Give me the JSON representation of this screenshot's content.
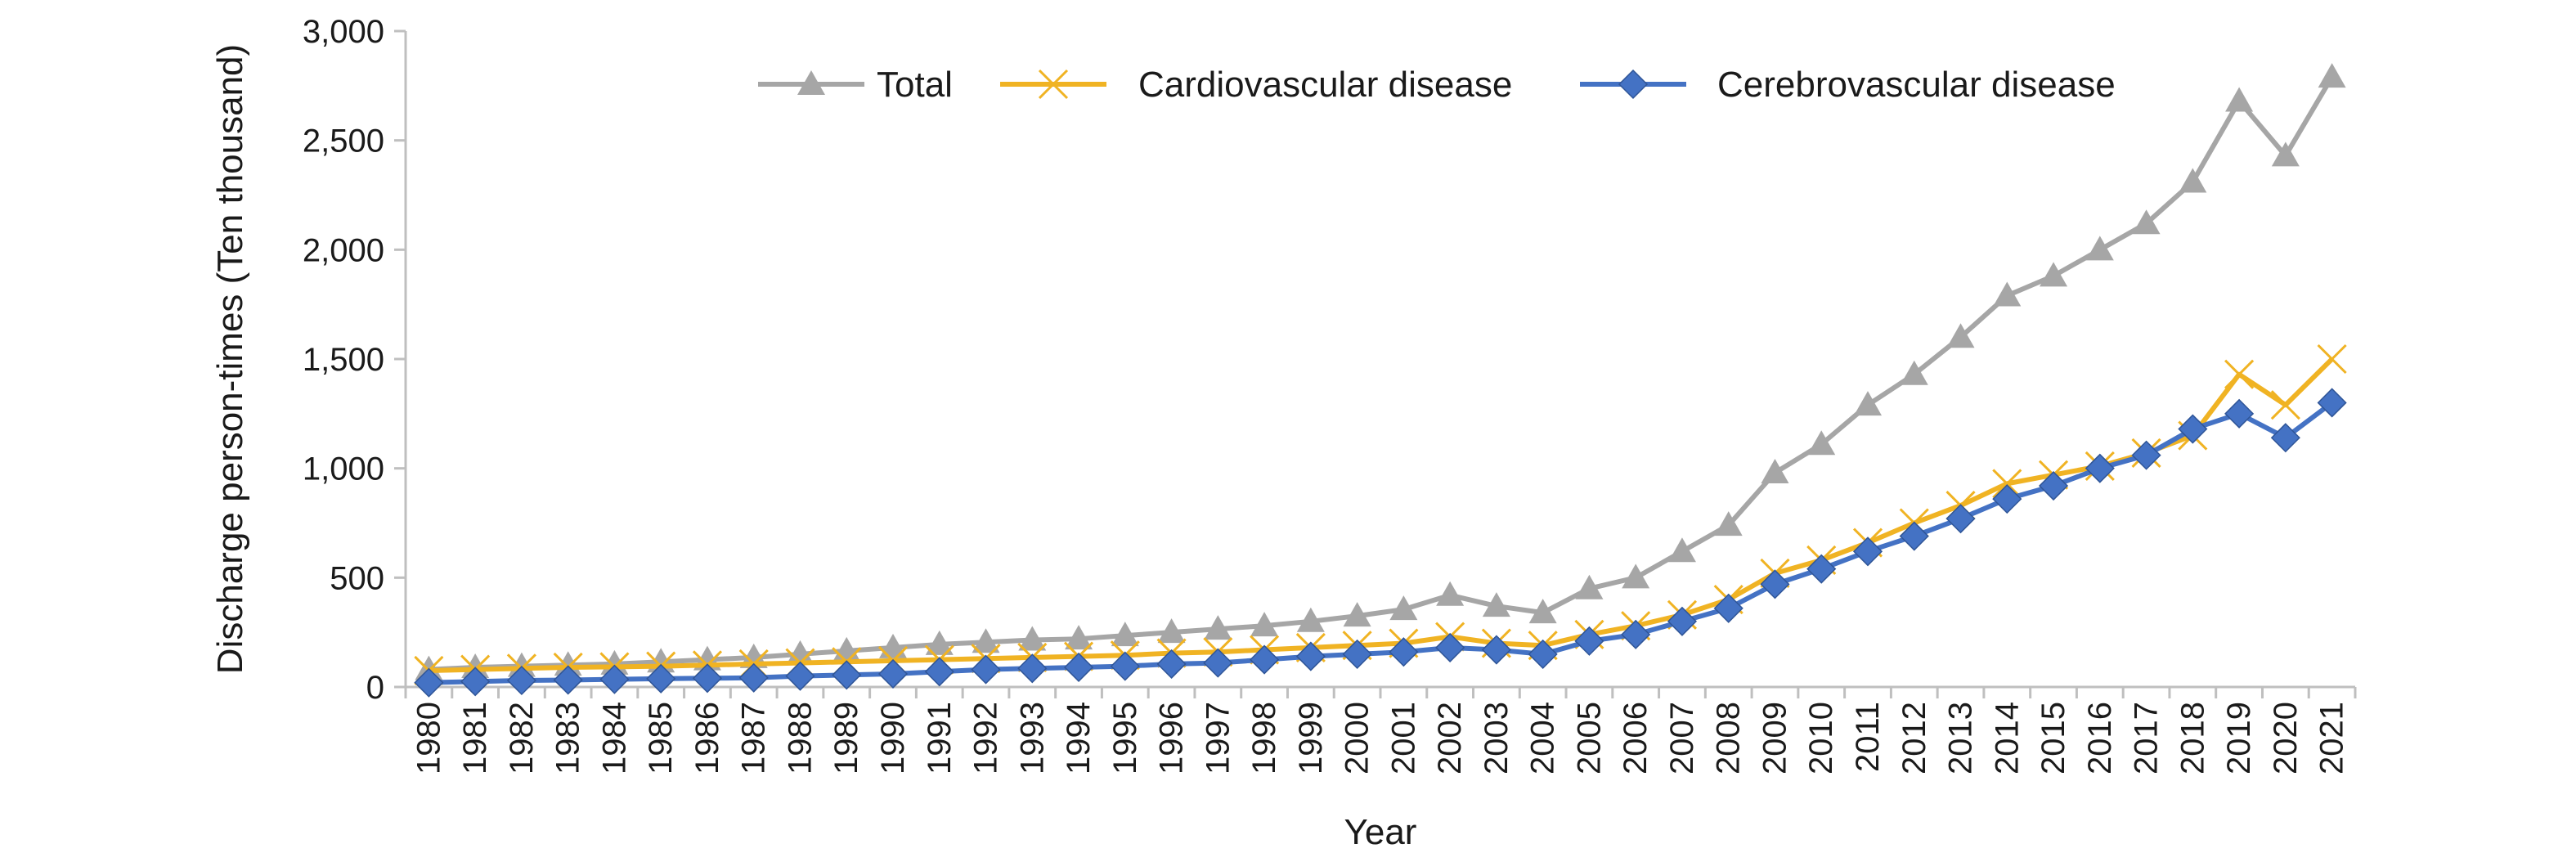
{
  "chart_data": {
    "type": "line",
    "title": "",
    "xlabel": "Year",
    "ylabel": "Discharge person-times (Ten thousand)",
    "ylim": [
      0,
      3000
    ],
    "yticks": [
      "0",
      "500",
      "1,000",
      "1,500",
      "2,000",
      "2,500",
      "3,000"
    ],
    "ytick_values": [
      0,
      500,
      1000,
      1500,
      2000,
      2500,
      3000
    ],
    "grid": false,
    "legend_position": "top",
    "x": [
      "1980",
      "1981",
      "1982",
      "1983",
      "1984",
      "1985",
      "1986",
      "1987",
      "1988",
      "1989",
      "1990",
      "1991",
      "1992",
      "1993",
      "1994",
      "1995",
      "1996",
      "1997",
      "1998",
      "1999",
      "2000",
      "2001",
      "2002",
      "2003",
      "2004",
      "2005",
      "2006",
      "2007",
      "2008",
      "2009",
      "2010",
      "2011",
      "2012",
      "2013",
      "2014",
      "2015",
      "2016",
      "2017",
      "2018",
      "2019",
      "2020",
      "2021"
    ],
    "series": [
      {
        "name": "Total",
        "color": "#a6a6a6",
        "marker": "triangle",
        "values": [
          80,
          90,
          95,
          100,
          105,
          115,
          125,
          135,
          150,
          165,
          180,
          195,
          205,
          215,
          220,
          235,
          250,
          265,
          280,
          300,
          325,
          355,
          420,
          370,
          340,
          450,
          500,
          620,
          740,
          980,
          1110,
          1290,
          1430,
          1600,
          1790,
          1880,
          2000,
          2120,
          2310,
          2680,
          2430,
          2790
        ]
      },
      {
        "name": "Cardiovascular disease",
        "color": "#f0b323",
        "marker": "x",
        "values": [
          75,
          80,
          85,
          90,
          92,
          95,
          100,
          105,
          110,
          115,
          120,
          125,
          130,
          135,
          140,
          145,
          155,
          160,
          170,
          180,
          190,
          200,
          230,
          200,
          190,
          240,
          280,
          330,
          400,
          520,
          580,
          660,
          750,
          830,
          930,
          970,
          1010,
          1070,
          1150,
          1430,
          1290,
          1500
        ]
      },
      {
        "name": "Cerebrovascular disease",
        "color": "#4472c4",
        "marker": "diamond",
        "values": [
          20,
          25,
          30,
          32,
          35,
          38,
          40,
          42,
          50,
          55,
          60,
          70,
          80,
          85,
          90,
          95,
          105,
          110,
          125,
          140,
          150,
          160,
          180,
          170,
          150,
          210,
          240,
          300,
          360,
          470,
          540,
          620,
          690,
          770,
          860,
          920,
          1000,
          1060,
          1180,
          1250,
          1140,
          1300
        ]
      }
    ]
  }
}
